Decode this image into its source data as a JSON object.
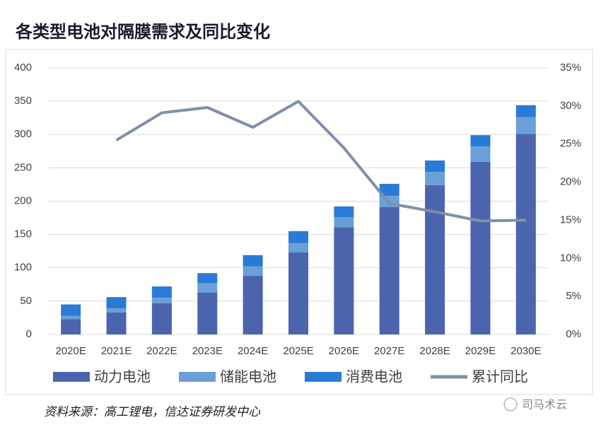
{
  "chart_data": {
    "type": "bar",
    "title": "各类型电池对隔膜需求及同比变化",
    "source": "资料来源：高工锂电，信达证券研发中心",
    "watermark": "司马术云",
    "categories": [
      "2020E",
      "2021E",
      "2022E",
      "2023E",
      "2024E",
      "2025E",
      "2026E",
      "2027E",
      "2028E",
      "2029E",
      "2030E"
    ],
    "series": [
      {
        "name": "动力电池",
        "color": "#4a65ad",
        "values": [
          23,
          33,
          47,
          63,
          88,
          123,
          161,
          191,
          224,
          259,
          301
        ]
      },
      {
        "name": "储能电池",
        "color": "#6a9fd8",
        "values": [
          5,
          6,
          8,
          14,
          14,
          14,
          15,
          17,
          20,
          23,
          25
        ]
      },
      {
        "name": "消费电池",
        "color": "#2a7ad8",
        "values": [
          17,
          17,
          17,
          15,
          17,
          18,
          16,
          18,
          17,
          17,
          18
        ]
      },
      {
        "name": "累计同比",
        "color": "#7f8fa9",
        "type": "line",
        "axis": "y2",
        "values": [
          null,
          25.5,
          29.1,
          29.8,
          27.2,
          30.6,
          24.5,
          17.2,
          16.1,
          14.9,
          15.0
        ]
      }
    ],
    "ylim": [
      0,
      400
    ],
    "yticks": [
      0,
      50,
      100,
      150,
      200,
      250,
      300,
      350,
      400
    ],
    "y2lim": [
      0,
      35
    ],
    "y2ticks": [
      {
        "value": 0,
        "label": "0%"
      },
      {
        "value": 5,
        "label": "5%"
      },
      {
        "value": 10,
        "label": "10%"
      },
      {
        "value": 15,
        "label": "15%"
      },
      {
        "value": 20,
        "label": "20%"
      },
      {
        "value": 25,
        "label": "25%"
      },
      {
        "value": 30,
        "label": "30%"
      },
      {
        "value": 35,
        "label": "35%"
      }
    ],
    "grid": true,
    "legend": "bottom"
  }
}
